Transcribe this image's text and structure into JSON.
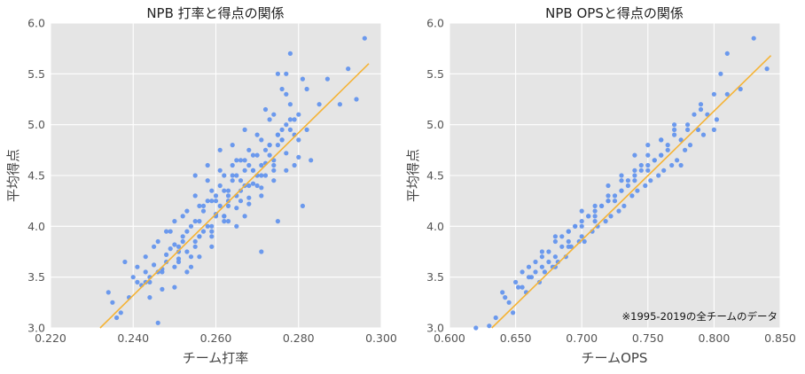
{
  "chart_data": [
    {
      "type": "scatter",
      "title": "NPB 打率と得点の関係",
      "xlabel": "チーム打率",
      "ylabel": "平均得点",
      "xlim": [
        0.22,
        0.3
      ],
      "ylim": [
        3.0,
        6.0
      ],
      "xticks": [
        "0.220",
        "0.240",
        "0.260",
        "0.280",
        "0.300"
      ],
      "yticks": [
        "3.0",
        "3.5",
        "4.0",
        "4.5",
        "5.0",
        "5.5",
        "6.0"
      ],
      "grid": true,
      "point_color": "#6495ED",
      "line_color": "#F5B335",
      "trendline": {
        "x": [
          0.232,
          0.297
        ],
        "y": [
          3.0,
          5.6
        ]
      },
      "x": [
        0.234,
        0.236,
        0.238,
        0.241,
        0.243,
        0.245,
        0.246,
        0.248,
        0.249,
        0.25,
        0.251,
        0.252,
        0.253,
        0.254,
        0.255,
        0.256,
        0.257,
        0.258,
        0.259,
        0.26,
        0.261,
        0.262,
        0.263,
        0.264,
        0.265,
        0.266,
        0.267,
        0.268,
        0.269,
        0.27,
        0.271,
        0.272,
        0.273,
        0.274,
        0.275,
        0.276,
        0.277,
        0.278,
        0.279,
        0.28,
        0.281,
        0.283,
        0.285,
        0.287,
        0.29,
        0.292,
        0.294,
        0.296,
        0.235,
        0.24,
        0.244,
        0.247,
        0.25,
        0.253,
        0.256,
        0.259,
        0.262,
        0.265,
        0.268,
        0.271,
        0.274,
        0.277,
        0.28,
        0.244,
        0.247,
        0.25,
        0.253,
        0.256,
        0.259,
        0.262,
        0.265,
        0.268,
        0.271,
        0.274,
        0.277,
        0.237,
        0.239,
        0.242,
        0.244,
        0.246,
        0.248,
        0.251,
        0.254,
        0.257,
        0.26,
        0.263,
        0.266,
        0.269,
        0.272,
        0.275,
        0.278,
        0.252,
        0.255,
        0.258,
        0.261,
        0.264,
        0.267,
        0.27,
        0.273,
        0.276,
        0.279,
        0.282,
        0.245,
        0.249,
        0.252,
        0.255,
        0.258,
        0.261,
        0.264,
        0.267,
        0.27,
        0.273,
        0.276,
        0.279,
        0.282,
        0.241,
        0.243,
        0.246,
        0.248,
        0.251,
        0.254,
        0.257,
        0.26,
        0.263,
        0.266,
        0.269,
        0.272,
        0.275,
        0.278,
        0.281,
        0.25,
        0.253,
        0.256,
        0.259,
        0.262,
        0.265,
        0.268,
        0.271,
        0.274,
        0.277,
        0.256,
        0.259,
        0.262,
        0.265,
        0.268,
        0.271,
        0.274,
        0.277,
        0.28,
        0.255,
        0.258,
        0.261,
        0.264,
        0.267,
        0.27,
        0.273,
        0.276,
        0.26,
        0.263,
        0.266,
        0.269,
        0.272,
        0.275,
        0.278,
        0.243,
        0.247,
        0.251,
        0.255,
        0.259,
        0.263,
        0.267,
        0.271,
        0.275
      ],
      "y": [
        3.35,
        3.1,
        3.65,
        3.45,
        3.55,
        3.62,
        3.05,
        3.72,
        3.78,
        3.82,
        3.68,
        3.9,
        3.95,
        3.6,
        3.85,
        4.05,
        4.15,
        4.0,
        4.25,
        4.1,
        4.2,
        4.35,
        4.3,
        4.45,
        4.5,
        4.25,
        4.4,
        4.6,
        4.55,
        4.7,
        4.3,
        4.75,
        4.8,
        4.65,
        4.9,
        4.85,
        5.0,
        5.05,
        4.6,
        5.1,
        4.2,
        4.65,
        5.2,
        5.45,
        5.2,
        5.55,
        5.25,
        5.85,
        3.25,
        3.5,
        3.3,
        3.58,
        3.4,
        3.75,
        3.9,
        3.8,
        4.05,
        4.18,
        4.22,
        4.38,
        4.45,
        4.55,
        4.68,
        3.45,
        3.38,
        3.6,
        3.55,
        3.7,
        3.95,
        4.1,
        4.0,
        4.28,
        4.5,
        4.6,
        4.72,
        3.15,
        3.3,
        3.42,
        3.5,
        3.55,
        3.65,
        3.75,
        3.7,
        3.95,
        4.12,
        4.2,
        4.35,
        4.42,
        4.62,
        4.8,
        4.95,
        4.1,
        4.3,
        4.45,
        4.55,
        4.6,
        4.65,
        4.5,
        4.8,
        4.95,
        5.05,
        5.35,
        3.8,
        3.95,
        3.85,
        4.05,
        4.25,
        4.4,
        4.5,
        4.55,
        4.4,
        4.7,
        4.85,
        4.9,
        4.95,
        3.6,
        3.7,
        3.85,
        3.95,
        3.8,
        4.0,
        4.2,
        4.3,
        4.25,
        4.45,
        4.55,
        4.5,
        4.9,
        5.2,
        5.45,
        4.05,
        4.15,
        4.2,
        4.35,
        4.5,
        4.65,
        4.75,
        4.85,
        5.1,
        5.3,
        3.9,
        4.0,
        4.1,
        4.3,
        4.4,
        4.6,
        4.55,
        5.5,
        4.85,
        4.5,
        4.6,
        4.75,
        4.8,
        4.95,
        4.9,
        5.05,
        5.35,
        4.25,
        4.35,
        4.65,
        4.7,
        5.15,
        5.5,
        5.7,
        3.45,
        3.55,
        3.65,
        3.8,
        3.9,
        4.05,
        4.1,
        3.75,
        4.05
      ]
    },
    {
      "type": "scatter",
      "title": "NPB OPSと得点の関係",
      "xlabel": "チームOPS",
      "ylabel": "平均得点",
      "xlim": [
        0.6,
        0.85
      ],
      "ylim": [
        3.0,
        6.0
      ],
      "xticks": [
        "0.600",
        "0.650",
        "0.700",
        "0.750",
        "0.800",
        "0.850"
      ],
      "yticks": [
        "3.0",
        "3.5",
        "4.0",
        "4.5",
        "5.0",
        "5.5",
        "6.0"
      ],
      "grid": true,
      "point_color": "#6495ED",
      "line_color": "#F5B335",
      "trendline": {
        "x": [
          0.632,
          0.843
        ],
        "y": [
          3.0,
          5.68
        ]
      },
      "annotation": "※1995-2019の全チームのデータ",
      "x": [
        0.62,
        0.63,
        0.635,
        0.64,
        0.645,
        0.65,
        0.655,
        0.66,
        0.665,
        0.67,
        0.675,
        0.68,
        0.685,
        0.69,
        0.695,
        0.7,
        0.705,
        0.71,
        0.715,
        0.72,
        0.725,
        0.73,
        0.735,
        0.74,
        0.745,
        0.75,
        0.755,
        0.76,
        0.765,
        0.77,
        0.775,
        0.78,
        0.785,
        0.79,
        0.795,
        0.8,
        0.805,
        0.81,
        0.82,
        0.83,
        0.84,
        0.642,
        0.652,
        0.662,
        0.672,
        0.682,
        0.692,
        0.702,
        0.712,
        0.722,
        0.732,
        0.742,
        0.752,
        0.762,
        0.772,
        0.782,
        0.792,
        0.802,
        0.648,
        0.658,
        0.668,
        0.678,
        0.688,
        0.698,
        0.708,
        0.718,
        0.728,
        0.738,
        0.748,
        0.758,
        0.768,
        0.778,
        0.788,
        0.655,
        0.665,
        0.675,
        0.685,
        0.695,
        0.705,
        0.715,
        0.725,
        0.735,
        0.745,
        0.755,
        0.765,
        0.775,
        0.66,
        0.67,
        0.68,
        0.69,
        0.7,
        0.71,
        0.72,
        0.73,
        0.74,
        0.75,
        0.76,
        0.77,
        0.67,
        0.68,
        0.69,
        0.7,
        0.71,
        0.72,
        0.73,
        0.74,
        0.75,
        0.76,
        0.68,
        0.69,
        0.7,
        0.71,
        0.72,
        0.73,
        0.74,
        0.75,
        0.76,
        0.77,
        0.78,
        0.79,
        0.8,
        0.81
      ],
      "y": [
        3.0,
        3.02,
        3.1,
        3.35,
        3.25,
        3.45,
        3.4,
        3.6,
        3.55,
        3.7,
        3.65,
        3.85,
        3.8,
        3.95,
        4.0,
        3.9,
        4.1,
        4.15,
        4.2,
        4.3,
        4.25,
        4.45,
        4.4,
        4.55,
        4.6,
        4.7,
        4.65,
        4.85,
        4.8,
        5.0,
        4.6,
        4.95,
        5.1,
        5.2,
        5.1,
        5.3,
        5.5,
        5.3,
        5.35,
        5.85,
        5.55,
        3.3,
        3.4,
        3.5,
        3.55,
        3.65,
        3.8,
        3.85,
        4.0,
        4.1,
        4.2,
        4.35,
        4.45,
        4.55,
        4.65,
        4.8,
        4.9,
        5.05,
        3.15,
        3.35,
        3.45,
        3.6,
        3.7,
        3.85,
        3.95,
        4.05,
        4.15,
        4.3,
        4.4,
        4.5,
        4.6,
        4.75,
        4.95,
        3.55,
        3.65,
        3.75,
        3.9,
        4.0,
        4.1,
        4.2,
        4.3,
        4.45,
        4.55,
        4.65,
        4.75,
        4.85,
        3.5,
        3.6,
        3.7,
        3.8,
        4.05,
        4.1,
        4.25,
        4.35,
        4.45,
        4.6,
        4.7,
        4.95,
        3.75,
        3.9,
        3.95,
        4.15,
        4.2,
        4.4,
        4.5,
        4.7,
        4.8,
        4.7,
        3.6,
        3.85,
        4.0,
        4.05,
        4.25,
        4.35,
        4.5,
        4.55,
        4.85,
        4.9,
        5.0,
        5.15,
        4.95,
        5.7
      ]
    }
  ]
}
